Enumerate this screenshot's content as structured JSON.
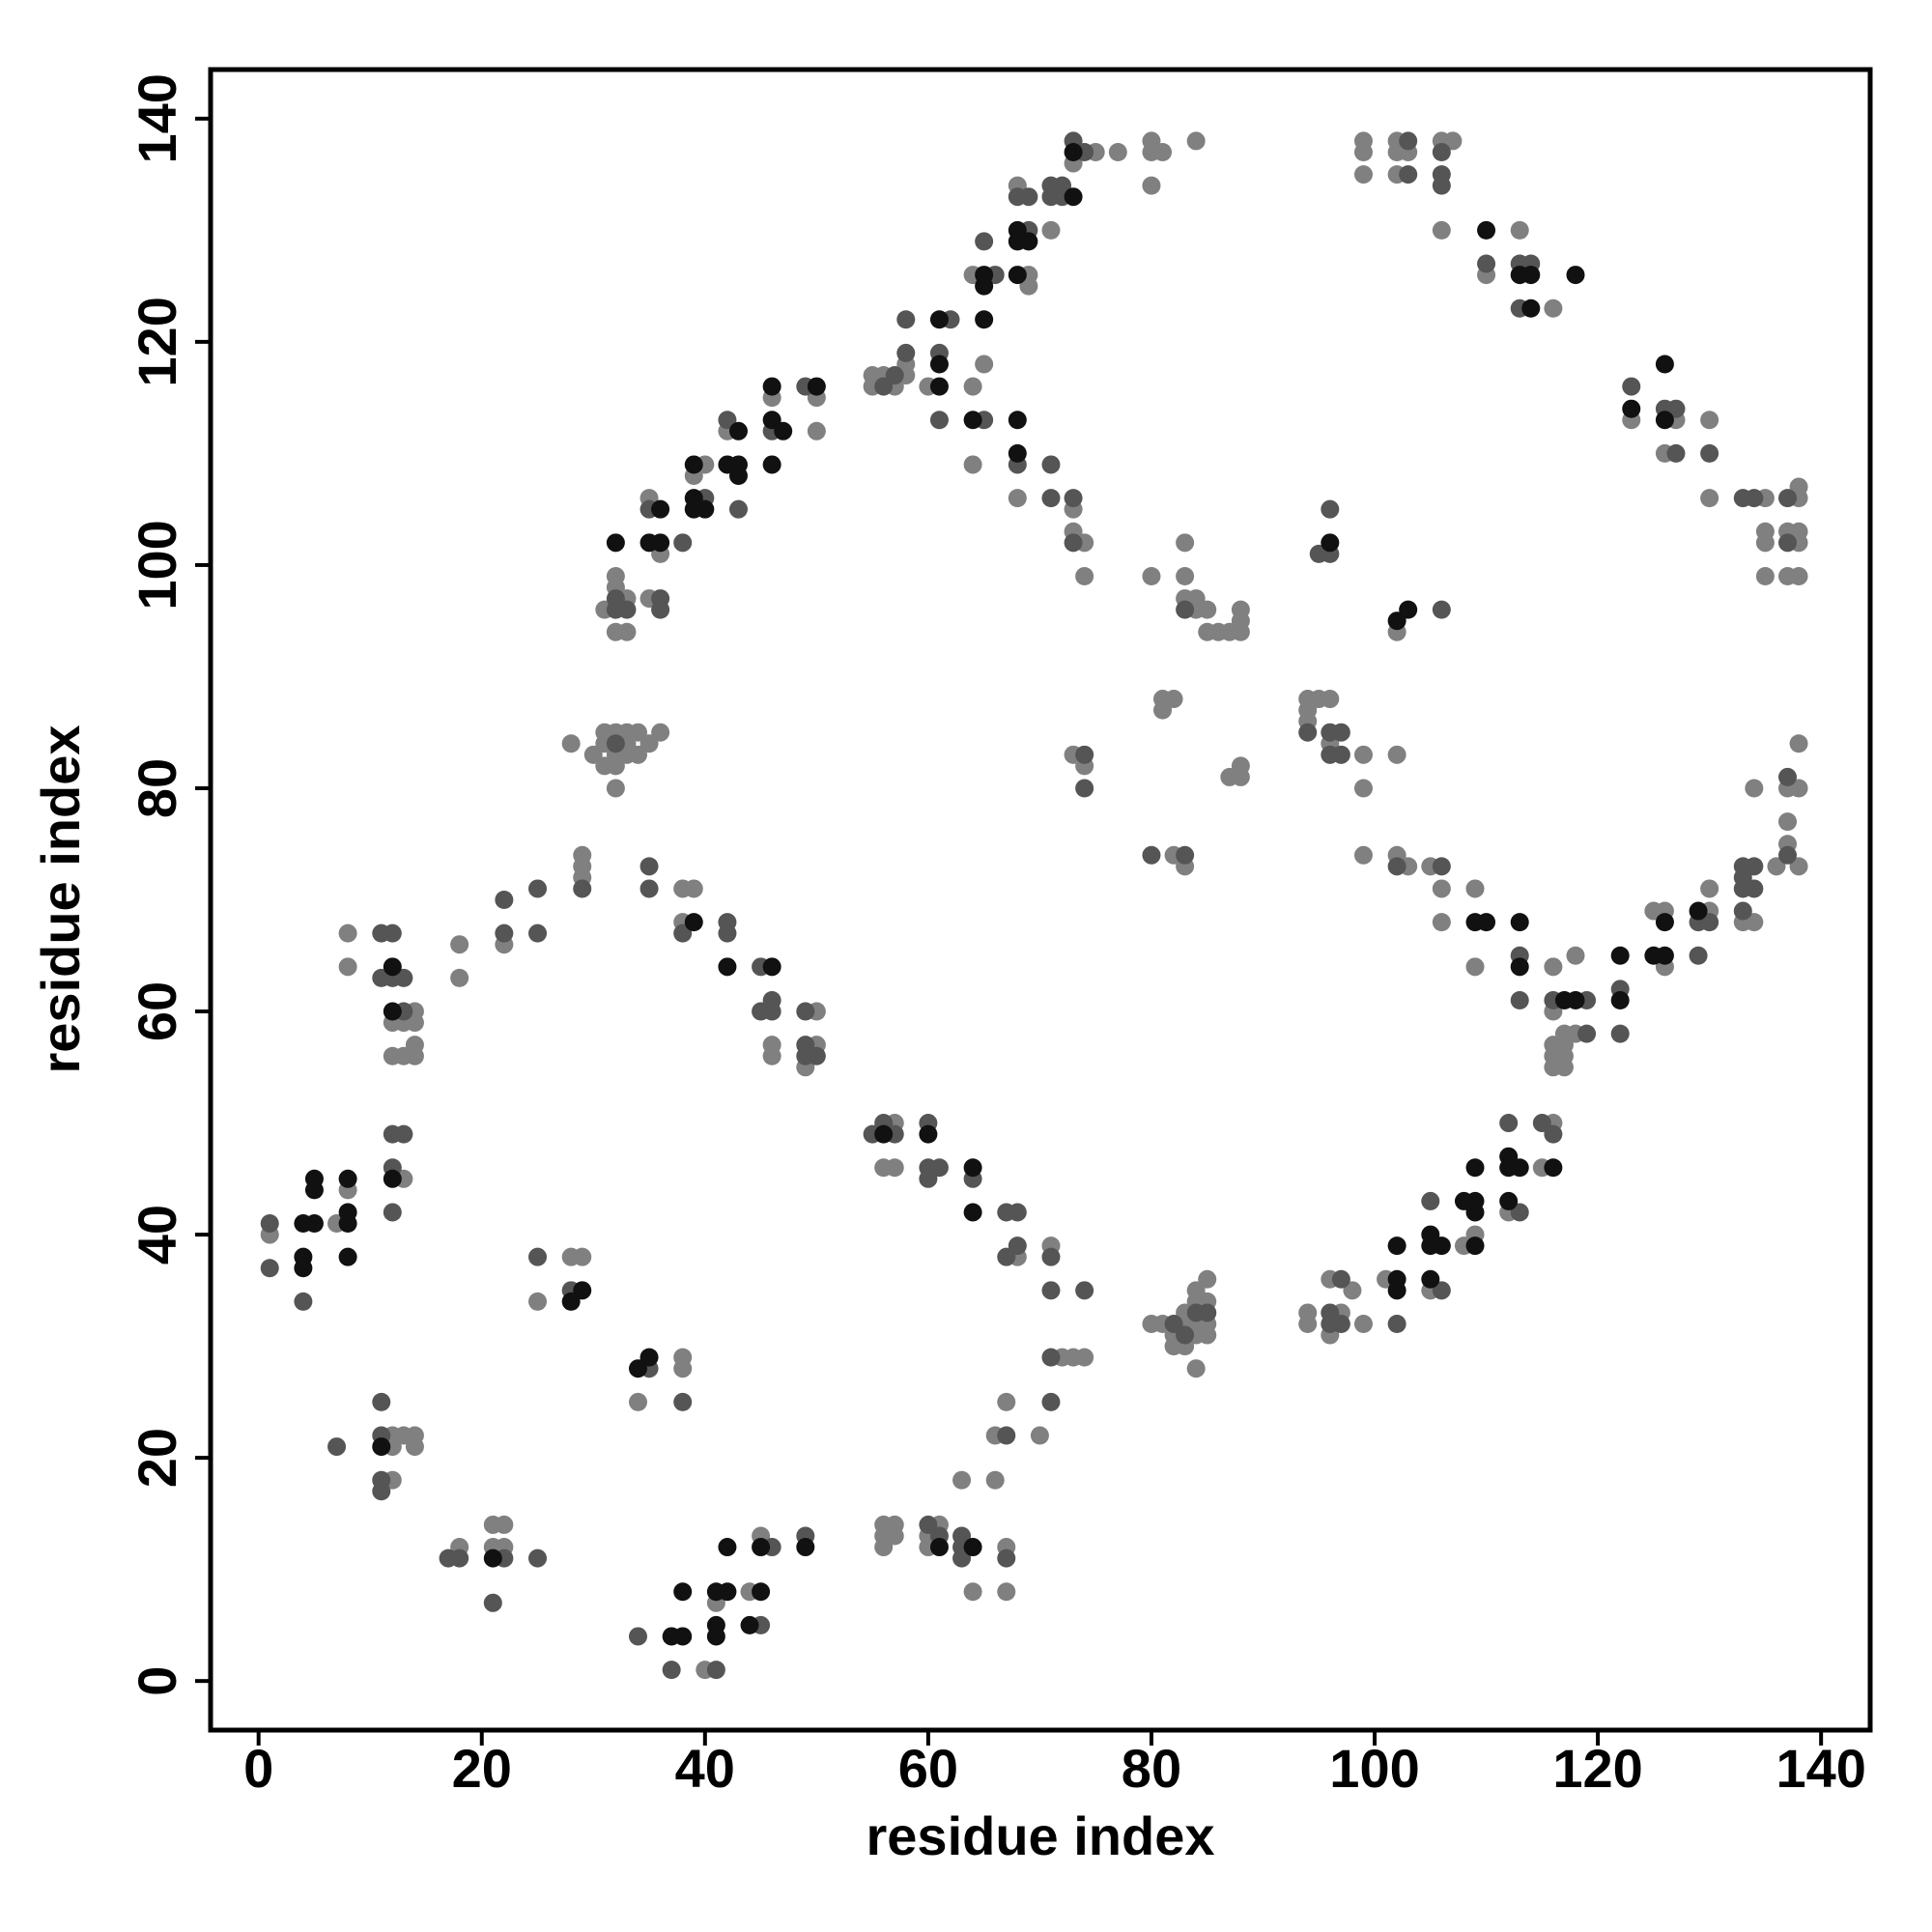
{
  "chart_data": {
    "type": "scatter",
    "xlabel": "residue index",
    "ylabel": "residue index",
    "xlim": [
      -4.3,
      144.4
    ],
    "ylim": [
      -4.4,
      144.4
    ],
    "xticks": [
      0,
      20,
      40,
      60,
      80,
      100,
      120,
      140
    ],
    "yticks": [
      0,
      20,
      40,
      60,
      80,
      100,
      120,
      140
    ],
    "series": [
      {
        "color": "#808080",
        "x": [
          1,
          7,
          8,
          8,
          8,
          12,
          12,
          13,
          13,
          14,
          14,
          14,
          14,
          13,
          12,
          12,
          12,
          13,
          14,
          14,
          18,
          21,
          21,
          22,
          22,
          18,
          18,
          22,
          25,
          28,
          29,
          29,
          29,
          29,
          28,
          30,
          31,
          31,
          32,
          32,
          32,
          32,
          33,
          33,
          33,
          34,
          34,
          35,
          36,
          31,
          32,
          32,
          32,
          31,
          33,
          33,
          35,
          35,
          36,
          39,
          40,
          42,
          46,
          50,
          50,
          40,
          41,
          44,
          45,
          34,
          38,
          38,
          38,
          38,
          39,
          46,
          46,
          49,
          50,
          50,
          55,
          55,
          56,
          57,
          58,
          58,
          60,
          64,
          64,
          65,
          64,
          68,
          68,
          69,
          69,
          71,
          73,
          73,
          73,
          74,
          74,
          75,
          77,
          80,
          80,
          80,
          81,
          84,
          56,
          57,
          57,
          68,
          71,
          72,
          73,
          74,
          70,
          67,
          66,
          66,
          63,
          64,
          67,
          67,
          56,
          56,
          56,
          57,
          57,
          60,
          60,
          61,
          73,
          74,
          80,
          83,
          83,
          83,
          84,
          84,
          85,
          85,
          86,
          87,
          88,
          88,
          88,
          81,
          81,
          82,
          82,
          83,
          87,
          88,
          88,
          80,
          81,
          82,
          82,
          83,
          83,
          83,
          84,
          84,
          84,
          84,
          84,
          85,
          85,
          85,
          85,
          94,
          94,
          94,
          95,
          96,
          96,
          99,
          99,
          102,
          99,
          102,
          103,
          105,
          106,
          106,
          109,
          109,
          116,
          116,
          116,
          116,
          116,
          117,
          117,
          117,
          117,
          118,
          118,
          125,
          126,
          126,
          130,
          130,
          133,
          134,
          136,
          137,
          137,
          137,
          138,
          138,
          138,
          134,
          102,
          94,
          94,
          96,
          96,
          97,
          98,
          99,
          101,
          105,
          108,
          109,
          112,
          115,
          116,
          99,
          99,
          99,
          102,
          102,
          102,
          103,
          106,
          107,
          106,
          110,
          113,
          116,
          123,
          126,
          127,
          130,
          130,
          135,
          135,
          135,
          135,
          137,
          137,
          138,
          138,
          138,
          138,
          138
        ],
        "values": [
          40,
          41,
          44,
          67,
          64,
          59,
          56,
          59,
          56,
          60,
          59,
          57,
          56,
          45,
          22,
          21,
          18,
          22,
          22,
          21,
          12,
          14,
          12,
          14,
          12,
          66,
          63,
          66,
          34,
          38,
          38,
          74,
          73,
          72,
          84,
          83,
          84,
          82,
          85,
          83,
          82,
          80,
          85,
          84,
          83,
          85,
          83,
          84,
          85,
          85,
          99,
          98,
          94,
          96,
          97,
          94,
          106,
          97,
          101,
          108,
          109,
          112,
          115,
          115,
          112,
          1,
          7,
          8,
          13,
          25,
          29,
          28,
          71,
          68,
          71,
          57,
          56,
          55,
          60,
          57,
          117,
          116,
          117,
          116,
          118,
          117,
          116,
          116,
          109,
          118,
          126,
          134,
          106,
          126,
          125,
          130,
          136,
          105,
          103,
          102,
          99,
          137,
          137,
          138,
          137,
          134,
          137,
          138,
          46,
          50,
          46,
          38,
          39,
          29,
          29,
          29,
          22,
          25,
          22,
          18,
          18,
          8,
          12,
          8,
          14,
          13,
          12,
          14,
          13,
          13,
          12,
          14,
          83,
          82,
          99,
          102,
          99,
          97,
          97,
          96,
          96,
          94,
          94,
          94,
          96,
          95,
          94,
          88,
          87,
          88,
          74,
          73,
          81,
          82,
          81,
          32,
          32,
          31,
          30,
          33,
          32,
          30,
          35,
          34,
          32,
          31,
          28,
          36,
          34,
          32,
          31,
          88,
          87,
          86,
          88,
          88,
          84,
          83,
          80,
          83,
          74,
          74,
          73,
          73,
          71,
          68,
          71,
          64,
          64,
          60,
          57,
          56,
          55,
          58,
          57,
          56,
          55,
          65,
          58,
          69,
          69,
          64,
          71,
          69,
          68,
          68,
          73,
          80,
          77,
          75,
          84,
          80,
          73,
          80,
          94,
          33,
          32,
          36,
          31,
          33,
          35,
          32,
          36,
          35,
          39,
          40,
          42,
          46,
          50,
          138,
          137,
          135,
          138,
          137,
          135,
          137,
          138,
          138,
          130,
          126,
          130,
          123,
          113,
          110,
          113,
          113,
          106,
          106,
          103,
          102,
          99,
          103,
          99,
          107,
          106,
          103,
          102,
          99
        ]
      },
      {
        "color": "#555555",
        "x": [
          1,
          1,
          4,
          11,
          11,
          12,
          12,
          13,
          13,
          12,
          13,
          12,
          12,
          7,
          11,
          11,
          11,
          11,
          17,
          18,
          21,
          22,
          25,
          22,
          22,
          25,
          25,
          25,
          28,
          29,
          32,
          32,
          32,
          33,
          35,
          36,
          36,
          38,
          40,
          42,
          43,
          46,
          49,
          34,
          37,
          41,
          45,
          46,
          49,
          35,
          38,
          35,
          35,
          38,
          42,
          42,
          45,
          45,
          46,
          46,
          49,
          49,
          49,
          50,
          56,
          57,
          58,
          58,
          61,
          61,
          62,
          65,
          65,
          66,
          68,
          68,
          69,
          69,
          71,
          71,
          71,
          71,
          72,
          72,
          73,
          73,
          73,
          74,
          55,
          56,
          57,
          60,
          60,
          60,
          61,
          64,
          67,
          68,
          68,
          67,
          71,
          71,
          74,
          71,
          71,
          67,
          63,
          63,
          63,
          67,
          60,
          61,
          74,
          74,
          83,
          80,
          83,
          83,
          84,
          85,
          82,
          94,
          96,
          96,
          97,
          97,
          102,
          106,
          113,
          113,
          116,
          119,
          119,
          122,
          122,
          129,
          129,
          130,
          133,
          133,
          133,
          133,
          134,
          134,
          137,
          137,
          95,
          96,
          96,
          106,
          96,
          96,
          97,
          97,
          102,
          105,
          106,
          112,
          113,
          115,
          116,
          103,
          103,
          106,
          106,
          106,
          110,
          113,
          113,
          114,
          123,
          126,
          127,
          127,
          130,
          133,
          134,
          137,
          137
        ],
        "values": [
          41,
          37,
          34,
          67,
          63,
          67,
          63,
          63,
          60,
          49,
          49,
          46,
          42,
          21,
          25,
          22,
          18,
          17,
          11,
          11,
          7,
          11,
          11,
          70,
          67,
          71,
          67,
          38,
          35,
          71,
          84,
          97,
          96,
          96,
          105,
          97,
          96,
          102,
          106,
          113,
          105,
          112,
          116,
          4,
          1,
          1,
          5,
          12,
          13,
          28,
          25,
          73,
          71,
          67,
          68,
          67,
          64,
          60,
          61,
          60,
          60,
          57,
          56,
          56,
          116,
          117,
          119,
          122,
          119,
          113,
          122,
          129,
          113,
          126,
          133,
          109,
          133,
          130,
          134,
          133,
          109,
          106,
          134,
          133,
          138,
          106,
          102,
          137,
          49,
          50,
          49,
          50,
          46,
          45,
          46,
          45,
          42,
          42,
          39,
          38,
          38,
          35,
          35,
          29,
          25,
          22,
          13,
          12,
          11,
          11,
          14,
          13,
          83,
          80,
          96,
          74,
          74,
          31,
          33,
          33,
          32,
          85,
          85,
          83,
          85,
          83,
          73,
          73,
          65,
          61,
          61,
          61,
          58,
          62,
          58,
          68,
          65,
          68,
          73,
          72,
          71,
          69,
          73,
          71,
          81,
          74,
          101,
          101,
          105,
          96,
          33,
          32,
          36,
          32,
          32,
          43,
          35,
          50,
          42,
          50,
          49,
          138,
          135,
          137,
          135,
          134,
          127,
          127,
          123,
          127,
          116,
          114,
          114,
          110,
          110,
          106,
          106,
          106,
          102
        ]
      },
      {
        "color": "#111111",
        "x": [
          4,
          4,
          4,
          5,
          5,
          5,
          8,
          8,
          8,
          8,
          12,
          12,
          12,
          11,
          21,
          28,
          29,
          32,
          35,
          36,
          36,
          39,
          39,
          39,
          40,
          42,
          43,
          43,
          43,
          46,
          46,
          46,
          47,
          50,
          37,
          38,
          38,
          41,
          41,
          41,
          42,
          42,
          44,
          45,
          45,
          49,
          34,
          35,
          39,
          42,
          46,
          61,
          61,
          61,
          64,
          65,
          65,
          65,
          68,
          68,
          68,
          68,
          68,
          69,
          73,
          73,
          56,
          60,
          64,
          64,
          64,
          61,
          109,
          110,
          113,
          113,
          117,
          118,
          122,
          122,
          125,
          126,
          126,
          129,
          96,
          103,
          102,
          102,
          102,
          102,
          105,
          105,
          105,
          106,
          108,
          109,
          109,
          109,
          109,
          112,
          112,
          112,
          113,
          116,
          110,
          113,
          114,
          114,
          118,
          123,
          126,
          126
        ],
        "values": [
          41,
          38,
          37,
          45,
          44,
          41,
          45,
          42,
          41,
          38,
          64,
          60,
          45,
          21,
          11,
          34,
          35,
          102,
          102,
          105,
          102,
          109,
          106,
          105,
          105,
          109,
          112,
          109,
          108,
          116,
          113,
          109,
          112,
          116,
          4,
          8,
          4,
          8,
          5,
          4,
          8,
          12,
          5,
          12,
          8,
          12,
          28,
          29,
          68,
          64,
          64,
          122,
          118,
          116,
          113,
          126,
          125,
          122,
          130,
          129,
          126,
          113,
          110,
          129,
          137,
          133,
          49,
          49,
          46,
          42,
          12,
          12,
          68,
          68,
          68,
          64,
          61,
          61,
          65,
          61,
          65,
          68,
          65,
          69,
          102,
          96,
          95,
          36,
          35,
          39,
          40,
          39,
          36,
          39,
          43,
          46,
          43,
          42,
          39,
          47,
          46,
          43,
          46,
          46,
          130,
          126,
          126,
          123,
          126,
          114,
          118,
          113
        ]
      }
    ]
  }
}
